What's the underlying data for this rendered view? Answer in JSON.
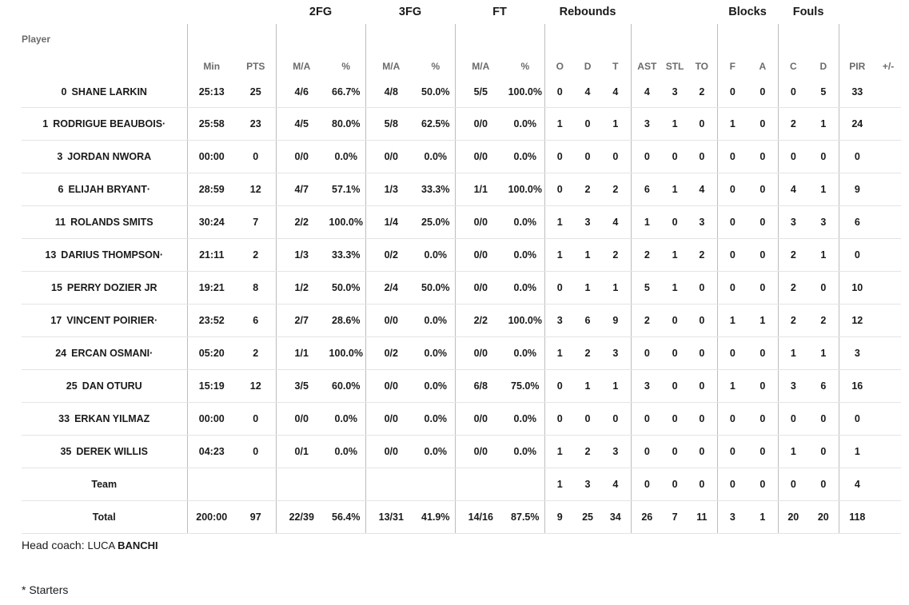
{
  "groups": {
    "fg2": "2FG",
    "fg3": "3FG",
    "ft": "FT",
    "rebounds": "Rebounds",
    "blocks": "Blocks",
    "fouls": "Fouls"
  },
  "headers": {
    "player": "Player",
    "min": "Min",
    "pts": "PTS",
    "fg2_ma": "M/A",
    "fg2_pct": "%",
    "fg3_ma": "M/A",
    "fg3_pct": "%",
    "ft_ma": "M/A",
    "ft_pct": "%",
    "reb_o": "O",
    "reb_d": "D",
    "reb_t": "T",
    "ast": "AST",
    "stl": "STL",
    "to": "TO",
    "blk_f": "F",
    "blk_a": "A",
    "foul_c": "C",
    "foul_d": "D",
    "pir": "PIR",
    "pm": "+/-"
  },
  "players": [
    {
      "num": "0",
      "first": "SHANE",
      "last": "LARKIN",
      "min": "25:13",
      "pts": "25",
      "fg2": "4/6",
      "fg2p": "66.7%",
      "fg3": "4/8",
      "fg3p": "50.0%",
      "ft": "5/5",
      "ftp": "100.0%",
      "o": "0",
      "d": "4",
      "t": "4",
      "ast": "4",
      "stl": "3",
      "to": "2",
      "bf": "0",
      "ba": "0",
      "fc": "0",
      "fd": "5",
      "pir": "33",
      "pm": ""
    },
    {
      "num": "1",
      "first": "RODRIGUE",
      "last": "BEAUBOIS·",
      "min": "25:58",
      "pts": "23",
      "fg2": "4/5",
      "fg2p": "80.0%",
      "fg3": "5/8",
      "fg3p": "62.5%",
      "ft": "0/0",
      "ftp": "0.0%",
      "o": "1",
      "d": "0",
      "t": "1",
      "ast": "3",
      "stl": "1",
      "to": "0",
      "bf": "1",
      "ba": "0",
      "fc": "2",
      "fd": "1",
      "pir": "24",
      "pm": ""
    },
    {
      "num": "3",
      "first": "JORDAN",
      "last": "NWORA",
      "min": "00:00",
      "pts": "0",
      "fg2": "0/0",
      "fg2p": "0.0%",
      "fg3": "0/0",
      "fg3p": "0.0%",
      "ft": "0/0",
      "ftp": "0.0%",
      "o": "0",
      "d": "0",
      "t": "0",
      "ast": "0",
      "stl": "0",
      "to": "0",
      "bf": "0",
      "ba": "0",
      "fc": "0",
      "fd": "0",
      "pir": "0",
      "pm": ""
    },
    {
      "num": "6",
      "first": "ELIJAH",
      "last": "BRYANT·",
      "min": "28:59",
      "pts": "12",
      "fg2": "4/7",
      "fg2p": "57.1%",
      "fg3": "1/3",
      "fg3p": "33.3%",
      "ft": "1/1",
      "ftp": "100.0%",
      "o": "0",
      "d": "2",
      "t": "2",
      "ast": "6",
      "stl": "1",
      "to": "4",
      "bf": "0",
      "ba": "0",
      "fc": "4",
      "fd": "1",
      "pir": "9",
      "pm": ""
    },
    {
      "num": "11",
      "first": "ROLANDS",
      "last": "SMITS",
      "min": "30:24",
      "pts": "7",
      "fg2": "2/2",
      "fg2p": "100.0%",
      "fg3": "1/4",
      "fg3p": "25.0%",
      "ft": "0/0",
      "ftp": "0.0%",
      "o": "1",
      "d": "3",
      "t": "4",
      "ast": "1",
      "stl": "0",
      "to": "3",
      "bf": "0",
      "ba": "0",
      "fc": "3",
      "fd": "3",
      "pir": "6",
      "pm": ""
    },
    {
      "num": "13",
      "first": "DARIUS",
      "last": "THOMPSON·",
      "min": "21:11",
      "pts": "2",
      "fg2": "1/3",
      "fg2p": "33.3%",
      "fg3": "0/2",
      "fg3p": "0.0%",
      "ft": "0/0",
      "ftp": "0.0%",
      "o": "1",
      "d": "1",
      "t": "2",
      "ast": "2",
      "stl": "1",
      "to": "2",
      "bf": "0",
      "ba": "0",
      "fc": "2",
      "fd": "1",
      "pir": "0",
      "pm": ""
    },
    {
      "num": "15",
      "first": "PERRY",
      "last": "DOZIER JR",
      "min": "19:21",
      "pts": "8",
      "fg2": "1/2",
      "fg2p": "50.0%",
      "fg3": "2/4",
      "fg3p": "50.0%",
      "ft": "0/0",
      "ftp": "0.0%",
      "o": "0",
      "d": "1",
      "t": "1",
      "ast": "5",
      "stl": "1",
      "to": "0",
      "bf": "0",
      "ba": "0",
      "fc": "2",
      "fd": "0",
      "pir": "10",
      "pm": ""
    },
    {
      "num": "17",
      "first": "VINCENT",
      "last": "POIRIER·",
      "min": "23:52",
      "pts": "6",
      "fg2": "2/7",
      "fg2p": "28.6%",
      "fg3": "0/0",
      "fg3p": "0.0%",
      "ft": "2/2",
      "ftp": "100.0%",
      "o": "3",
      "d": "6",
      "t": "9",
      "ast": "2",
      "stl": "0",
      "to": "0",
      "bf": "1",
      "ba": "1",
      "fc": "2",
      "fd": "2",
      "pir": "12",
      "pm": ""
    },
    {
      "num": "24",
      "first": "ERCAN",
      "last": "OSMANI·",
      "min": "05:20",
      "pts": "2",
      "fg2": "1/1",
      "fg2p": "100.0%",
      "fg3": "0/2",
      "fg3p": "0.0%",
      "ft": "0/0",
      "ftp": "0.0%",
      "o": "1",
      "d": "2",
      "t": "3",
      "ast": "0",
      "stl": "0",
      "to": "0",
      "bf": "0",
      "ba": "0",
      "fc": "1",
      "fd": "1",
      "pir": "3",
      "pm": ""
    },
    {
      "num": "25",
      "first": "DAN",
      "last": "OTURU",
      "min": "15:19",
      "pts": "12",
      "fg2": "3/5",
      "fg2p": "60.0%",
      "fg3": "0/0",
      "fg3p": "0.0%",
      "ft": "6/8",
      "ftp": "75.0%",
      "o": "0",
      "d": "1",
      "t": "1",
      "ast": "3",
      "stl": "0",
      "to": "0",
      "bf": "1",
      "ba": "0",
      "fc": "3",
      "fd": "6",
      "pir": "16",
      "pm": ""
    },
    {
      "num": "33",
      "first": "ERKAN",
      "last": "YILMAZ",
      "min": "00:00",
      "pts": "0",
      "fg2": "0/0",
      "fg2p": "0.0%",
      "fg3": "0/0",
      "fg3p": "0.0%",
      "ft": "0/0",
      "ftp": "0.0%",
      "o": "0",
      "d": "0",
      "t": "0",
      "ast": "0",
      "stl": "0",
      "to": "0",
      "bf": "0",
      "ba": "0",
      "fc": "0",
      "fd": "0",
      "pir": "0",
      "pm": ""
    },
    {
      "num": "35",
      "first": "DEREK",
      "last": "WILLIS",
      "min": "04:23",
      "pts": "0",
      "fg2": "0/1",
      "fg2p": "0.0%",
      "fg3": "0/0",
      "fg3p": "0.0%",
      "ft": "0/0",
      "ftp": "0.0%",
      "o": "1",
      "d": "2",
      "t": "3",
      "ast": "0",
      "stl": "0",
      "to": "0",
      "bf": "0",
      "ba": "0",
      "fc": "1",
      "fd": "0",
      "pir": "1",
      "pm": ""
    }
  ],
  "team": {
    "label": "Team",
    "o": "1",
    "d": "3",
    "t": "4",
    "ast": "0",
    "stl": "0",
    "to": "0",
    "bf": "0",
    "ba": "0",
    "fc": "0",
    "fd": "0",
    "pir": "4"
  },
  "total": {
    "label": "Total",
    "min": "200:00",
    "pts": "97",
    "fg2": "22/39",
    "fg2p": "56.4%",
    "fg3": "13/31",
    "fg3p": "41.9%",
    "ft": "14/16",
    "ftp": "87.5%",
    "o": "9",
    "d": "25",
    "t": "34",
    "ast": "26",
    "stl": "7",
    "to": "11",
    "bf": "3",
    "ba": "1",
    "fc": "20",
    "fd": "20",
    "pir": "118"
  },
  "coach": {
    "label": "Head coach:",
    "first": "LUCA",
    "last": "BANCHI"
  },
  "footnote": "* Starters"
}
